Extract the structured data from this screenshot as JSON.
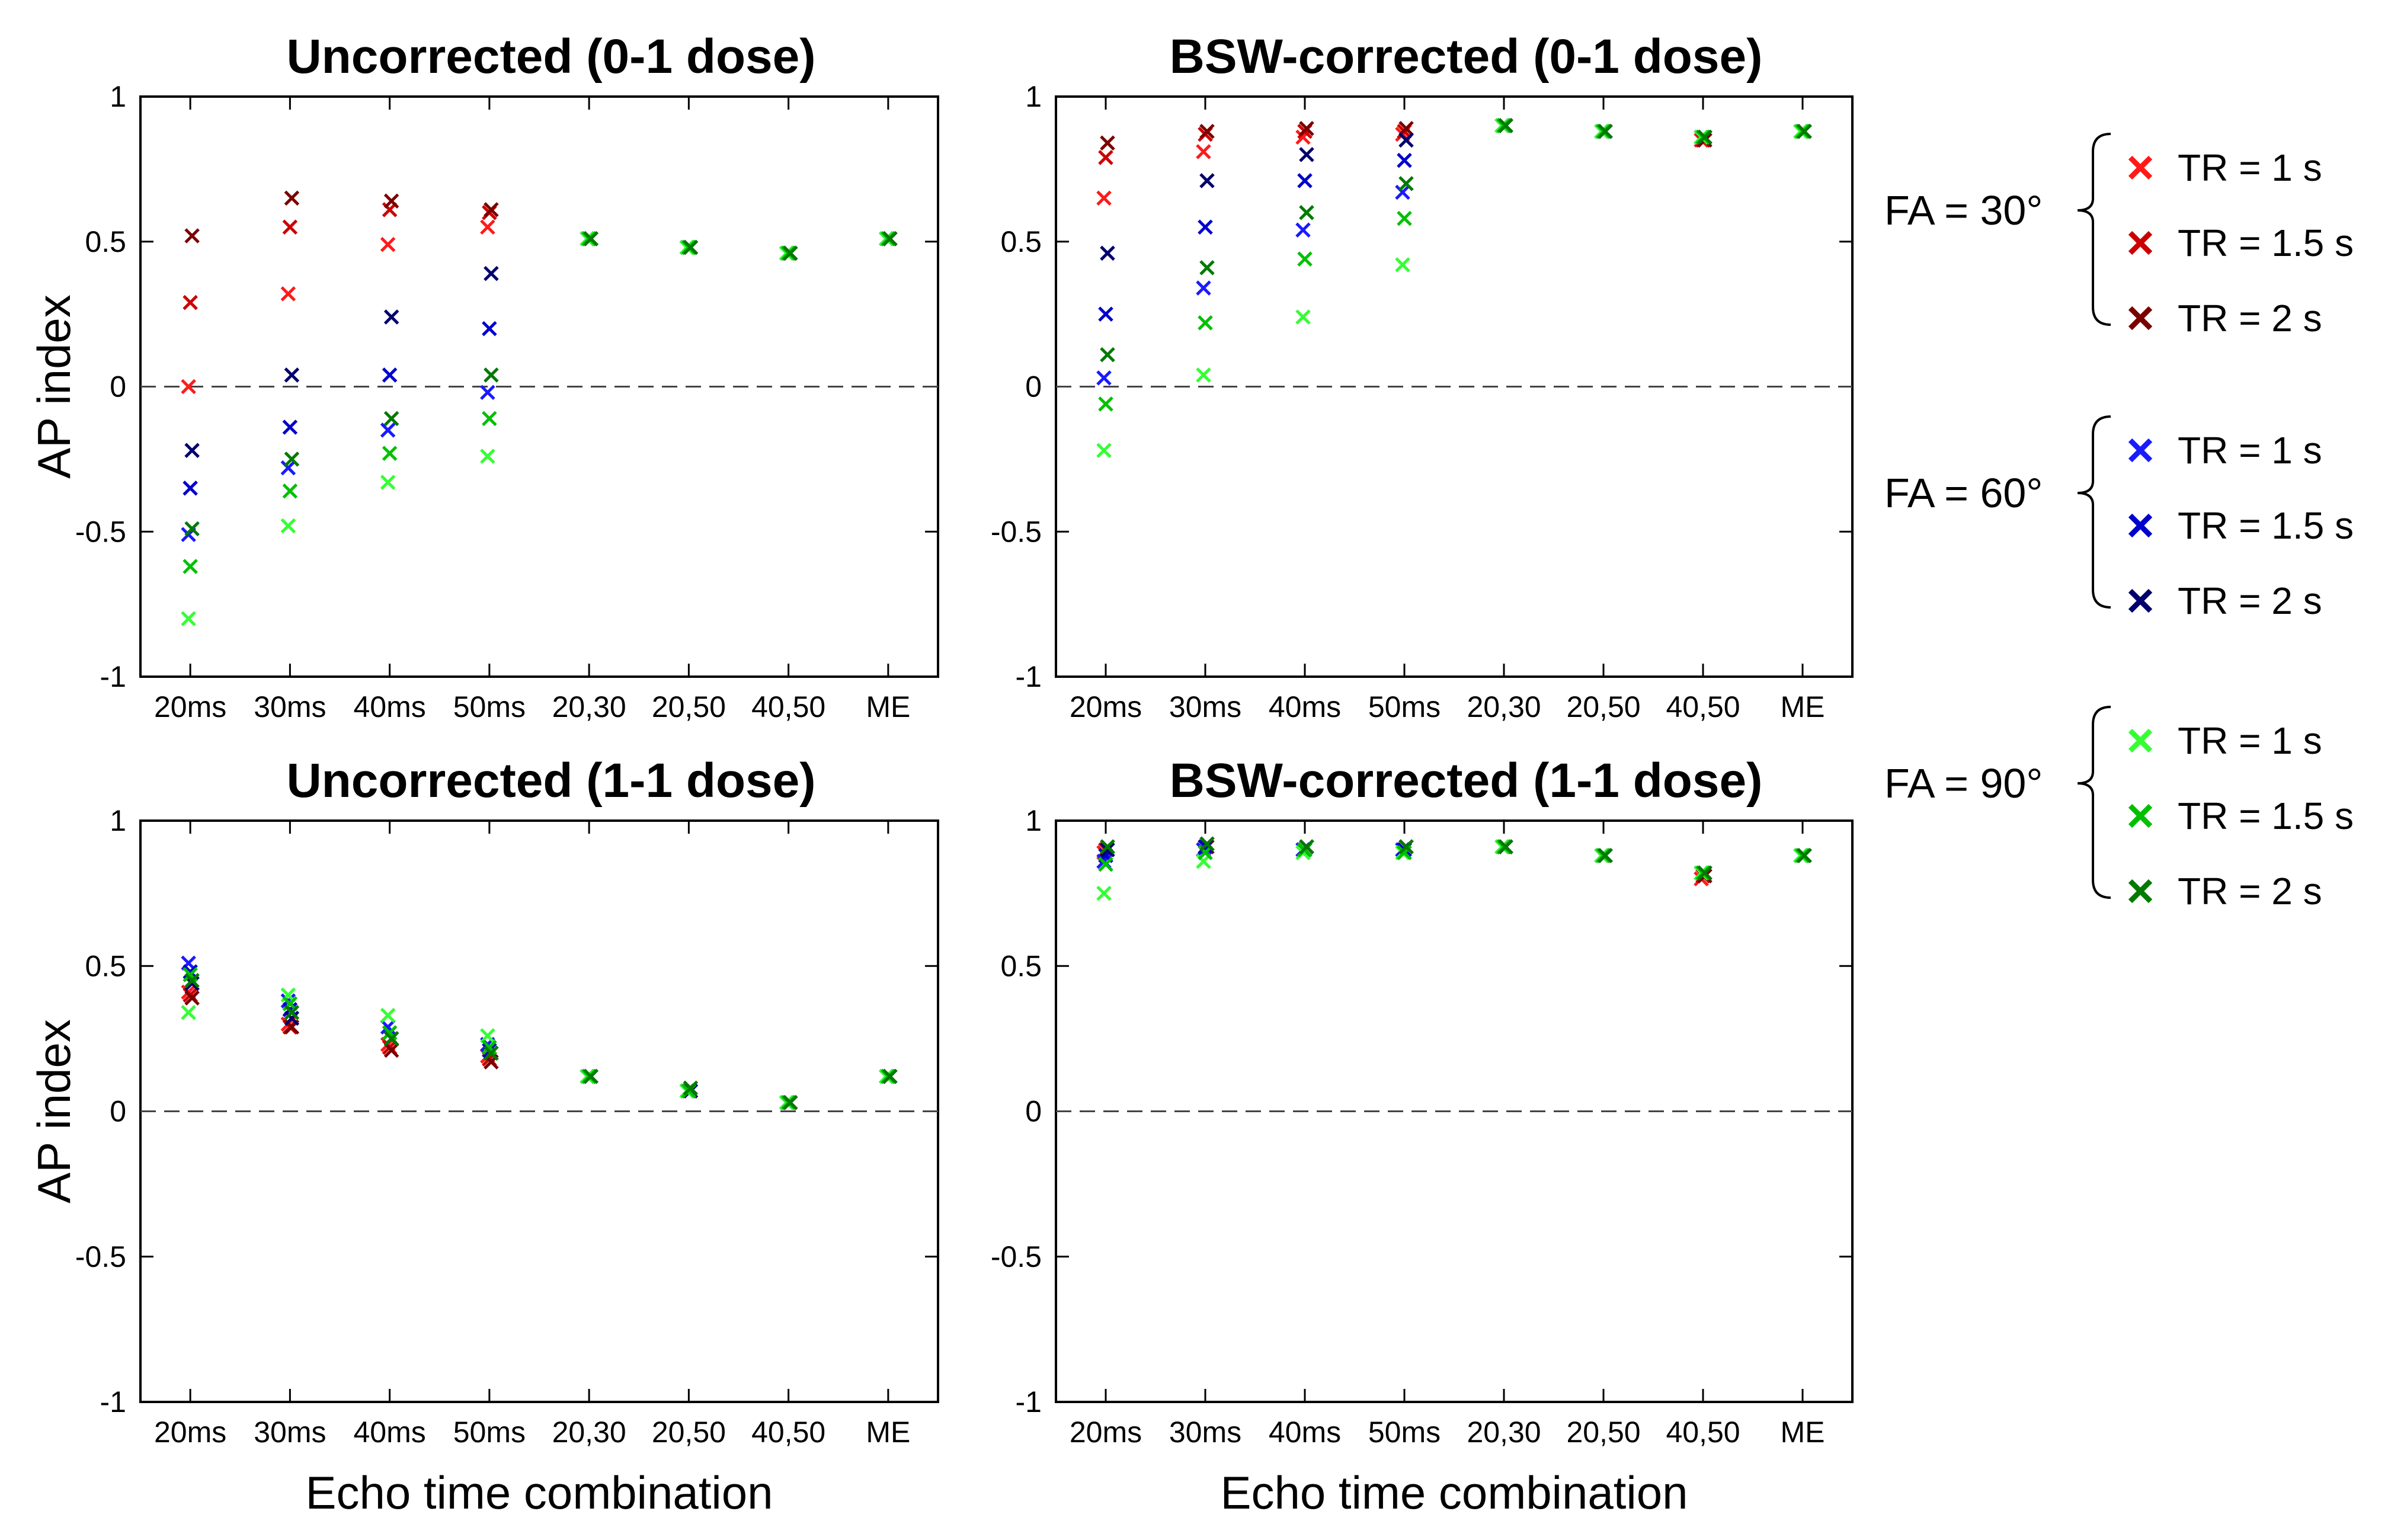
{
  "chart_data": [
    {
      "type": "scatter",
      "title": "Uncorrected (0-1 dose)",
      "xlabel": "",
      "ylabel": "AP index",
      "categories": [
        "20ms",
        "30ms",
        "40ms",
        "50ms",
        "20,30",
        "20,50",
        "40,50",
        "ME"
      ],
      "ylim": [
        -1,
        1
      ],
      "yticks": [
        "-1",
        "-0.5",
        "0",
        "0.5",
        "1"
      ],
      "reference_line": 0,
      "series": [
        {
          "name": "FA = 30° TR = 1 s",
          "values": [
            0.0,
            0.32,
            0.49,
            0.55,
            0.51,
            0.48,
            0.46,
            0.51
          ]
        },
        {
          "name": "FA = 30° TR = 1.5 s",
          "values": [
            0.29,
            0.55,
            0.61,
            0.6,
            0.51,
            0.48,
            0.46,
            0.51
          ]
        },
        {
          "name": "FA = 30° TR = 2 s",
          "values": [
            0.52,
            0.65,
            0.64,
            0.61,
            0.51,
            0.48,
            0.46,
            0.51
          ]
        },
        {
          "name": "FA = 60° TR = 1 s",
          "values": [
            -0.51,
            -0.28,
            -0.15,
            -0.02,
            0.51,
            0.48,
            0.46,
            0.51
          ]
        },
        {
          "name": "FA = 60° TR = 1.5 s",
          "values": [
            -0.35,
            -0.14,
            0.04,
            0.2,
            0.51,
            0.48,
            0.46,
            0.51
          ]
        },
        {
          "name": "FA = 60° TR = 2 s",
          "values": [
            -0.22,
            0.04,
            0.24,
            0.39,
            0.51,
            0.48,
            0.46,
            0.51
          ]
        },
        {
          "name": "FA = 90° TR = 1 s",
          "values": [
            -0.8,
            -0.48,
            -0.33,
            -0.24,
            0.51,
            0.48,
            0.46,
            0.51
          ]
        },
        {
          "name": "FA = 90° TR = 1.5 s",
          "values": [
            -0.62,
            -0.36,
            -0.23,
            -0.11,
            0.51,
            0.48,
            0.46,
            0.51
          ]
        },
        {
          "name": "FA = 90° TR = 2 s",
          "values": [
            -0.49,
            -0.25,
            -0.11,
            0.04,
            0.51,
            0.48,
            0.46,
            0.51
          ]
        }
      ]
    },
    {
      "type": "scatter",
      "title": "BSW-corrected (0-1 dose)",
      "xlabel": "",
      "ylabel": "",
      "categories": [
        "20ms",
        "30ms",
        "40ms",
        "50ms",
        "20,30",
        "20,50",
        "40,50",
        "ME"
      ],
      "ylim": [
        -1,
        1
      ],
      "yticks": [
        "-1",
        "-0.5",
        "0",
        "0.5",
        "1"
      ],
      "reference_line": 0,
      "series": [
        {
          "name": "FA = 30° TR = 1 s",
          "values": [
            0.65,
            0.81,
            0.86,
            0.87,
            0.9,
            0.88,
            0.85,
            0.88
          ]
        },
        {
          "name": "FA = 30° TR = 1.5 s",
          "values": [
            0.79,
            0.87,
            0.88,
            0.88,
            0.9,
            0.88,
            0.85,
            0.88
          ]
        },
        {
          "name": "FA = 30° TR = 2 s",
          "values": [
            0.84,
            0.88,
            0.89,
            0.89,
            0.9,
            0.88,
            0.85,
            0.88
          ]
        },
        {
          "name": "FA = 60° TR = 1 s",
          "values": [
            0.03,
            0.34,
            0.54,
            0.67,
            0.9,
            0.88,
            0.86,
            0.88
          ]
        },
        {
          "name": "FA = 60° TR = 1.5 s",
          "values": [
            0.25,
            0.55,
            0.71,
            0.78,
            0.9,
            0.88,
            0.86,
            0.88
          ]
        },
        {
          "name": "FA = 60° TR = 2 s",
          "values": [
            0.46,
            0.71,
            0.8,
            0.85,
            0.9,
            0.88,
            0.86,
            0.88
          ]
        },
        {
          "name": "FA = 90° TR = 1 s",
          "values": [
            -0.22,
            0.04,
            0.24,
            0.42,
            0.9,
            0.88,
            0.86,
            0.88
          ]
        },
        {
          "name": "FA = 90° TR = 1.5 s",
          "values": [
            -0.06,
            0.22,
            0.44,
            0.58,
            0.9,
            0.88,
            0.86,
            0.88
          ]
        },
        {
          "name": "FA = 90° TR = 2 s",
          "values": [
            0.11,
            0.41,
            0.6,
            0.7,
            0.9,
            0.88,
            0.86,
            0.88
          ]
        }
      ]
    },
    {
      "type": "scatter",
      "title": "Uncorrected (1-1 dose)",
      "xlabel": "Echo time combination",
      "ylabel": "AP index",
      "categories": [
        "20ms",
        "30ms",
        "40ms",
        "50ms",
        "20,30",
        "20,50",
        "40,50",
        "ME"
      ],
      "ylim": [
        -1,
        1
      ],
      "yticks": [
        "-1",
        "-0.5",
        "0",
        "0.5",
        "1"
      ],
      "reference_line": 0,
      "series": [
        {
          "name": "FA = 30° TR = 1 s",
          "values": [
            0.41,
            0.3,
            0.23,
            0.19,
            0.12,
            0.07,
            0.03,
            0.12
          ]
        },
        {
          "name": "FA = 30° TR = 1.5 s",
          "values": [
            0.4,
            0.29,
            0.22,
            0.18,
            0.12,
            0.07,
            0.03,
            0.12
          ]
        },
        {
          "name": "FA = 30° TR = 2 s",
          "values": [
            0.39,
            0.29,
            0.21,
            0.17,
            0.12,
            0.07,
            0.03,
            0.12
          ]
        },
        {
          "name": "FA = 60° TR = 1 s",
          "values": [
            0.51,
            0.38,
            0.29,
            0.23,
            0.12,
            0.07,
            0.03,
            0.12
          ]
        },
        {
          "name": "FA = 60° TR = 1.5 s",
          "values": [
            0.48,
            0.35,
            0.27,
            0.21,
            0.12,
            0.07,
            0.03,
            0.12
          ]
        },
        {
          "name": "FA = 60° TR = 2 s",
          "values": [
            0.44,
            0.32,
            0.25,
            0.2,
            0.12,
            0.07,
            0.03,
            0.12
          ]
        },
        {
          "name": "FA = 90° TR = 1 s",
          "values": [
            0.34,
            0.4,
            0.33,
            0.26,
            0.12,
            0.07,
            0.03,
            0.12
          ]
        },
        {
          "name": "FA = 90° TR = 1.5 s",
          "values": [
            0.47,
            0.37,
            0.27,
            0.22,
            0.12,
            0.07,
            0.03,
            0.12
          ]
        },
        {
          "name": "FA = 90° TR = 2 s",
          "values": [
            0.45,
            0.34,
            0.25,
            0.2,
            0.12,
            0.08,
            0.03,
            0.12
          ]
        }
      ]
    },
    {
      "type": "scatter",
      "title": "BSW-corrected (1-1 dose)",
      "xlabel": "Echo time combination",
      "ylabel": "",
      "categories": [
        "20ms",
        "30ms",
        "40ms",
        "50ms",
        "20,30",
        "20,50",
        "40,50",
        "ME"
      ],
      "ylim": [
        -1,
        1
      ],
      "yticks": [
        "-1",
        "-0.5",
        "0",
        "0.5",
        "1"
      ],
      "reference_line": 0,
      "series": [
        {
          "name": "FA = 30° TR = 1 s",
          "values": [
            0.89,
            0.9,
            0.9,
            0.9,
            0.91,
            0.88,
            0.8,
            0.88
          ]
        },
        {
          "name": "FA = 30° TR = 1.5 s",
          "values": [
            0.9,
            0.91,
            0.9,
            0.9,
            0.91,
            0.88,
            0.81,
            0.88
          ]
        },
        {
          "name": "FA = 30° TR = 2 s",
          "values": [
            0.91,
            0.91,
            0.91,
            0.91,
            0.91,
            0.88,
            0.81,
            0.88
          ]
        },
        {
          "name": "FA = 60° TR = 1 s",
          "values": [
            0.86,
            0.9,
            0.9,
            0.9,
            0.91,
            0.88,
            0.82,
            0.88
          ]
        },
        {
          "name": "FA = 60° TR = 1.5 s",
          "values": [
            0.88,
            0.91,
            0.9,
            0.9,
            0.91,
            0.88,
            0.82,
            0.88
          ]
        },
        {
          "name": "FA = 60° TR = 2 s",
          "values": [
            0.9,
            0.92,
            0.91,
            0.91,
            0.91,
            0.88,
            0.82,
            0.88
          ]
        },
        {
          "name": "FA = 90° TR = 1 s",
          "values": [
            0.75,
            0.86,
            0.89,
            0.89,
            0.91,
            0.88,
            0.82,
            0.88
          ]
        },
        {
          "name": "FA = 90° TR = 1.5 s",
          "values": [
            0.85,
            0.89,
            0.9,
            0.89,
            0.91,
            0.88,
            0.82,
            0.88
          ]
        },
        {
          "name": "FA = 90° TR = 2 s",
          "values": [
            0.91,
            0.92,
            0.91,
            0.91,
            0.91,
            0.88,
            0.82,
            0.88
          ]
        }
      ]
    }
  ],
  "legend": {
    "placement": "right",
    "groups": [
      {
        "label": "FA = 30°",
        "items": [
          {
            "label": "TR = 1 s",
            "color": "#ff1a1a"
          },
          {
            "label": "TR = 1.5 s",
            "color": "#cc0000"
          },
          {
            "label": "TR = 2 s",
            "color": "#7a0000"
          }
        ]
      },
      {
        "label": "FA = 60°",
        "items": [
          {
            "label": "TR = 1 s",
            "color": "#1a1aff"
          },
          {
            "label": "TR = 1.5 s",
            "color": "#0000cc"
          },
          {
            "label": "TR = 2 s",
            "color": "#00006e"
          }
        ]
      },
      {
        "label": "FA = 90°",
        "items": [
          {
            "label": "TR = 1 s",
            "color": "#33ff33"
          },
          {
            "label": "TR = 1.5 s",
            "color": "#00c000"
          },
          {
            "label": "TR = 2 s",
            "color": "#007a00"
          }
        ]
      }
    ]
  }
}
